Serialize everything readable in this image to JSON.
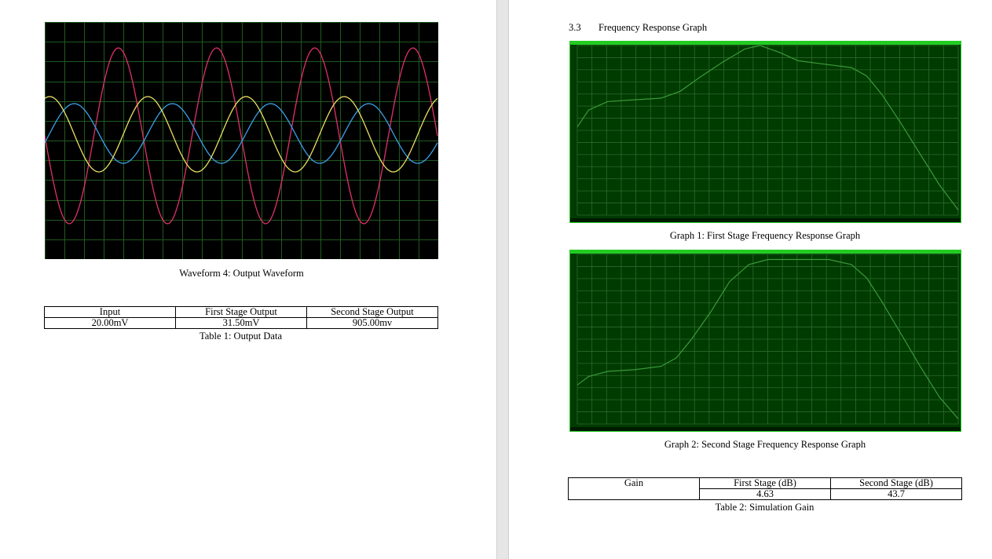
{
  "left_page": {
    "waveform_caption": "Waveform 4: Output Waveform",
    "output_table": {
      "headers": [
        "Input",
        "First Stage Output",
        "Second Stage Output"
      ],
      "rows": [
        [
          "20.00mV",
          "31.50mV",
          "905.00mv"
        ]
      ]
    },
    "table_caption": "Table 1: Output Data"
  },
  "right_page": {
    "section_number": "3.3",
    "section_title": "Frequency Response Graph",
    "graph1_caption": "Graph 1: First Stage Frequency Response Graph",
    "graph2_caption": "Graph 2: Second Stage Frequency Response Graph",
    "gain_table": {
      "headers": [
        "Gain",
        "First Stage (dB)",
        "Second Stage (dB)"
      ],
      "rows": [
        [
          "",
          "4.63",
          "43.7"
        ]
      ]
    },
    "table_caption": "Table 2: Simulation Gain"
  },
  "colors": {
    "trace_red": "#e0306a",
    "trace_blue": "#3aa0e8",
    "trace_yellow": "#e8e060",
    "grid_green": "#1f5a1f",
    "bode_background": "#003b00",
    "bode_frame": "#22cc22",
    "bode_curve": "#3a9a3a"
  }
}
